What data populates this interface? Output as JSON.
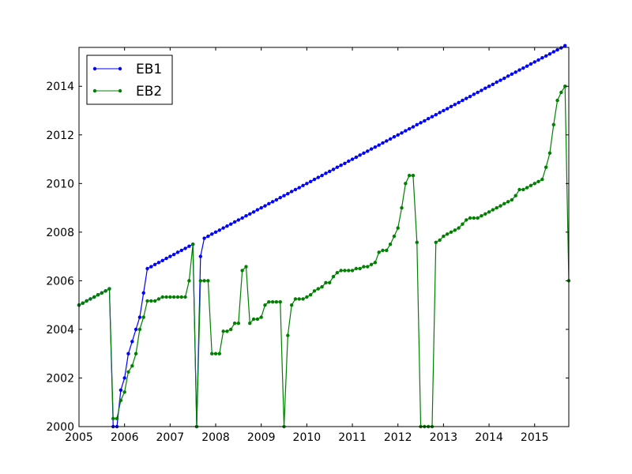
{
  "chart_data": {
    "type": "line",
    "title": "",
    "xlabel": "",
    "ylabel": "",
    "xlim": [
      2005.0,
      2015.75
    ],
    "ylim": [
      2000,
      2015.6
    ],
    "x_ticks": [
      2005,
      2006,
      2007,
      2008,
      2009,
      2010,
      2011,
      2012,
      2013,
      2014,
      2015
    ],
    "x_tick_labels": [
      "2005",
      "2006",
      "2007",
      "2008",
      "2009",
      "2010",
      "2011",
      "2012",
      "2013",
      "2014",
      "2015"
    ],
    "y_ticks": [
      2000,
      2002,
      2004,
      2006,
      2008,
      2010,
      2012,
      2014
    ],
    "y_tick_labels": [
      "2000",
      "2002",
      "2004",
      "2006",
      "2008",
      "2010",
      "2012",
      "2014"
    ],
    "grid": false,
    "legend_position": "top-left",
    "series": [
      {
        "name": "EB1",
        "color": "#0000ff",
        "points": [
          [
            2005.0,
            2005.0
          ],
          [
            2005.083,
            2005.08
          ],
          [
            2005.167,
            2005.17
          ],
          [
            2005.25,
            2005.25
          ],
          [
            2005.333,
            2005.33
          ],
          [
            2005.417,
            2005.42
          ],
          [
            2005.5,
            2005.5
          ],
          [
            2005.583,
            2005.58
          ],
          [
            2005.667,
            2005.67
          ],
          [
            2005.75,
            2000.0
          ],
          [
            2005.833,
            2000.0
          ],
          [
            2005.917,
            2001.5
          ],
          [
            2006.0,
            2002.0
          ],
          [
            2006.083,
            2003.0
          ],
          [
            2006.167,
            2003.5
          ],
          [
            2006.25,
            2004.0
          ],
          [
            2006.333,
            2004.5
          ],
          [
            2006.417,
            2005.5
          ],
          [
            2006.5,
            2006.5
          ],
          [
            2006.583,
            2006.58
          ],
          [
            2006.667,
            2006.67
          ],
          [
            2006.75,
            2006.75
          ],
          [
            2006.833,
            2006.83
          ],
          [
            2006.917,
            2006.92
          ],
          [
            2007.0,
            2007.0
          ],
          [
            2007.083,
            2007.08
          ],
          [
            2007.167,
            2007.17
          ],
          [
            2007.25,
            2007.25
          ],
          [
            2007.333,
            2007.33
          ],
          [
            2007.417,
            2007.42
          ],
          [
            2007.5,
            2007.5
          ],
          [
            2007.583,
            2000.0
          ],
          [
            2007.667,
            2007.0
          ],
          [
            2007.75,
            2007.75
          ],
          [
            2007.833,
            2007.83
          ],
          [
            2007.917,
            2007.92
          ],
          [
            2008.0,
            2008.0
          ],
          [
            2008.083,
            2008.08
          ],
          [
            2008.167,
            2008.17
          ],
          [
            2008.25,
            2008.25
          ],
          [
            2008.333,
            2008.33
          ],
          [
            2008.417,
            2008.42
          ],
          [
            2008.5,
            2008.5
          ],
          [
            2008.583,
            2008.58
          ],
          [
            2008.667,
            2008.67
          ],
          [
            2008.75,
            2008.75
          ],
          [
            2008.833,
            2008.83
          ],
          [
            2008.917,
            2008.92
          ],
          [
            2009.0,
            2009.0
          ],
          [
            2009.083,
            2009.08
          ],
          [
            2009.167,
            2009.17
          ],
          [
            2009.25,
            2009.25
          ],
          [
            2009.333,
            2009.33
          ],
          [
            2009.417,
            2009.42
          ],
          [
            2009.5,
            2009.5
          ],
          [
            2009.583,
            2009.58
          ],
          [
            2009.667,
            2009.67
          ],
          [
            2009.75,
            2009.75
          ],
          [
            2009.833,
            2009.83
          ],
          [
            2009.917,
            2009.92
          ],
          [
            2010.0,
            2010.0
          ],
          [
            2010.083,
            2010.08
          ],
          [
            2010.167,
            2010.17
          ],
          [
            2010.25,
            2010.25
          ],
          [
            2010.333,
            2010.33
          ],
          [
            2010.417,
            2010.42
          ],
          [
            2010.5,
            2010.5
          ],
          [
            2010.583,
            2010.58
          ],
          [
            2010.667,
            2010.67
          ],
          [
            2010.75,
            2010.75
          ],
          [
            2010.833,
            2010.83
          ],
          [
            2010.917,
            2010.92
          ],
          [
            2011.0,
            2011.0
          ],
          [
            2011.083,
            2011.08
          ],
          [
            2011.167,
            2011.17
          ],
          [
            2011.25,
            2011.25
          ],
          [
            2011.333,
            2011.33
          ],
          [
            2011.417,
            2011.42
          ],
          [
            2011.5,
            2011.5
          ],
          [
            2011.583,
            2011.58
          ],
          [
            2011.667,
            2011.67
          ],
          [
            2011.75,
            2011.75
          ],
          [
            2011.833,
            2011.83
          ],
          [
            2011.917,
            2011.92
          ],
          [
            2012.0,
            2012.0
          ],
          [
            2012.083,
            2012.08
          ],
          [
            2012.167,
            2012.17
          ],
          [
            2012.25,
            2012.25
          ],
          [
            2012.333,
            2012.33
          ],
          [
            2012.417,
            2012.42
          ],
          [
            2012.5,
            2012.5
          ],
          [
            2012.583,
            2012.58
          ],
          [
            2012.667,
            2012.67
          ],
          [
            2012.75,
            2012.75
          ],
          [
            2012.833,
            2012.83
          ],
          [
            2012.917,
            2012.92
          ],
          [
            2013.0,
            2013.0
          ],
          [
            2013.083,
            2013.08
          ],
          [
            2013.167,
            2013.17
          ],
          [
            2013.25,
            2013.25
          ],
          [
            2013.333,
            2013.33
          ],
          [
            2013.417,
            2013.42
          ],
          [
            2013.5,
            2013.5
          ],
          [
            2013.583,
            2013.58
          ],
          [
            2013.667,
            2013.67
          ],
          [
            2013.75,
            2013.75
          ],
          [
            2013.833,
            2013.83
          ],
          [
            2013.917,
            2013.92
          ],
          [
            2014.0,
            2014.0
          ],
          [
            2014.083,
            2014.08
          ],
          [
            2014.167,
            2014.17
          ],
          [
            2014.25,
            2014.25
          ],
          [
            2014.333,
            2014.33
          ],
          [
            2014.417,
            2014.42
          ],
          [
            2014.5,
            2014.5
          ],
          [
            2014.583,
            2014.58
          ],
          [
            2014.667,
            2014.67
          ],
          [
            2014.75,
            2014.75
          ],
          [
            2014.833,
            2014.83
          ],
          [
            2014.917,
            2014.92
          ],
          [
            2015.0,
            2015.0
          ],
          [
            2015.083,
            2015.08
          ],
          [
            2015.167,
            2015.17
          ],
          [
            2015.25,
            2015.25
          ],
          [
            2015.333,
            2015.33
          ],
          [
            2015.417,
            2015.42
          ],
          [
            2015.5,
            2015.5
          ],
          [
            2015.583,
            2015.58
          ],
          [
            2015.667,
            2015.67
          ]
        ]
      },
      {
        "name": "EB2",
        "color": "#008000",
        "points": [
          [
            2005.0,
            2005.0
          ],
          [
            2005.083,
            2005.08
          ],
          [
            2005.167,
            2005.17
          ],
          [
            2005.25,
            2005.25
          ],
          [
            2005.333,
            2005.33
          ],
          [
            2005.417,
            2005.42
          ],
          [
            2005.5,
            2005.5
          ],
          [
            2005.583,
            2005.58
          ],
          [
            2005.667,
            2005.67
          ],
          [
            2005.75,
            2000.33
          ],
          [
            2005.833,
            2000.33
          ],
          [
            2005.917,
            2001.08
          ],
          [
            2006.0,
            2001.42
          ],
          [
            2006.083,
            2002.25
          ],
          [
            2006.167,
            2002.5
          ],
          [
            2006.25,
            2003.0
          ],
          [
            2006.333,
            2004.0
          ],
          [
            2006.417,
            2004.5
          ],
          [
            2006.5,
            2005.17
          ],
          [
            2006.583,
            2005.17
          ],
          [
            2006.667,
            2005.17
          ],
          [
            2006.75,
            2005.25
          ],
          [
            2006.833,
            2005.33
          ],
          [
            2006.917,
            2005.33
          ],
          [
            2007.0,
            2005.33
          ],
          [
            2007.083,
            2005.33
          ],
          [
            2007.167,
            2005.33
          ],
          [
            2007.25,
            2005.33
          ],
          [
            2007.333,
            2005.33
          ],
          [
            2007.417,
            2006.0
          ],
          [
            2007.5,
            2007.5
          ],
          [
            2007.583,
            2000.0
          ],
          [
            2007.667,
            2006.0
          ],
          [
            2007.75,
            2006.0
          ],
          [
            2007.833,
            2006.0
          ],
          [
            2007.917,
            2003.0
          ],
          [
            2008.0,
            2003.0
          ],
          [
            2008.083,
            2003.0
          ],
          [
            2008.167,
            2003.92
          ],
          [
            2008.25,
            2003.92
          ],
          [
            2008.333,
            2004.0
          ],
          [
            2008.417,
            2004.25
          ],
          [
            2008.5,
            2004.25
          ],
          [
            2008.583,
            2006.42
          ],
          [
            2008.667,
            2006.58
          ],
          [
            2008.75,
            2004.25
          ],
          [
            2008.833,
            2004.42
          ],
          [
            2008.917,
            2004.42
          ],
          [
            2009.0,
            2004.5
          ],
          [
            2009.083,
            2005.0
          ],
          [
            2009.167,
            2005.13
          ],
          [
            2009.25,
            2005.13
          ],
          [
            2009.333,
            2005.13
          ],
          [
            2009.417,
            2005.13
          ],
          [
            2009.5,
            2000.0
          ],
          [
            2009.583,
            2003.75
          ],
          [
            2009.667,
            2005.0
          ],
          [
            2009.75,
            2005.25
          ],
          [
            2009.833,
            2005.25
          ],
          [
            2009.917,
            2005.25
          ],
          [
            2010.0,
            2005.33
          ],
          [
            2010.083,
            2005.42
          ],
          [
            2010.167,
            2005.58
          ],
          [
            2010.25,
            2005.67
          ],
          [
            2010.333,
            2005.75
          ],
          [
            2010.417,
            2005.92
          ],
          [
            2010.5,
            2005.92
          ],
          [
            2010.583,
            2006.17
          ],
          [
            2010.667,
            2006.33
          ],
          [
            2010.75,
            2006.42
          ],
          [
            2010.833,
            2006.42
          ],
          [
            2010.917,
            2006.42
          ],
          [
            2011.0,
            2006.42
          ],
          [
            2011.083,
            2006.5
          ],
          [
            2011.167,
            2006.5
          ],
          [
            2011.25,
            2006.58
          ],
          [
            2011.333,
            2006.58
          ],
          [
            2011.417,
            2006.67
          ],
          [
            2011.5,
            2006.75
          ],
          [
            2011.583,
            2007.17
          ],
          [
            2011.667,
            2007.25
          ],
          [
            2011.75,
            2007.25
          ],
          [
            2011.833,
            2007.5
          ],
          [
            2011.917,
            2007.83
          ],
          [
            2012.0,
            2008.17
          ],
          [
            2012.083,
            2009.0
          ],
          [
            2012.167,
            2010.0
          ],
          [
            2012.25,
            2010.33
          ],
          [
            2012.333,
            2010.33
          ],
          [
            2012.417,
            2007.58
          ],
          [
            2012.5,
            2000.0
          ],
          [
            2012.583,
            2000.0
          ],
          [
            2012.667,
            2000.0
          ],
          [
            2012.75,
            2000.0
          ],
          [
            2012.833,
            2007.58
          ],
          [
            2012.917,
            2007.67
          ],
          [
            2013.0,
            2007.83
          ],
          [
            2013.083,
            2007.92
          ],
          [
            2013.167,
            2008.0
          ],
          [
            2013.25,
            2008.08
          ],
          [
            2013.333,
            2008.17
          ],
          [
            2013.417,
            2008.33
          ],
          [
            2013.5,
            2008.5
          ],
          [
            2013.583,
            2008.58
          ],
          [
            2013.667,
            2008.58
          ],
          [
            2013.75,
            2008.58
          ],
          [
            2013.833,
            2008.67
          ],
          [
            2013.917,
            2008.75
          ],
          [
            2014.0,
            2008.83
          ],
          [
            2014.083,
            2008.92
          ],
          [
            2014.167,
            2009.0
          ],
          [
            2014.25,
            2009.08
          ],
          [
            2014.333,
            2009.17
          ],
          [
            2014.417,
            2009.25
          ],
          [
            2014.5,
            2009.33
          ],
          [
            2014.583,
            2009.5
          ],
          [
            2014.667,
            2009.75
          ],
          [
            2014.75,
            2009.75
          ],
          [
            2014.833,
            2009.83
          ],
          [
            2014.917,
            2009.92
          ],
          [
            2015.0,
            2010.0
          ],
          [
            2015.083,
            2010.08
          ],
          [
            2015.167,
            2010.17
          ],
          [
            2015.25,
            2010.67
          ],
          [
            2015.333,
            2011.25
          ],
          [
            2015.417,
            2012.42
          ],
          [
            2015.5,
            2013.42
          ],
          [
            2015.583,
            2013.75
          ],
          [
            2015.667,
            2014.0
          ],
          [
            2015.75,
            2006.0
          ]
        ]
      }
    ]
  }
}
